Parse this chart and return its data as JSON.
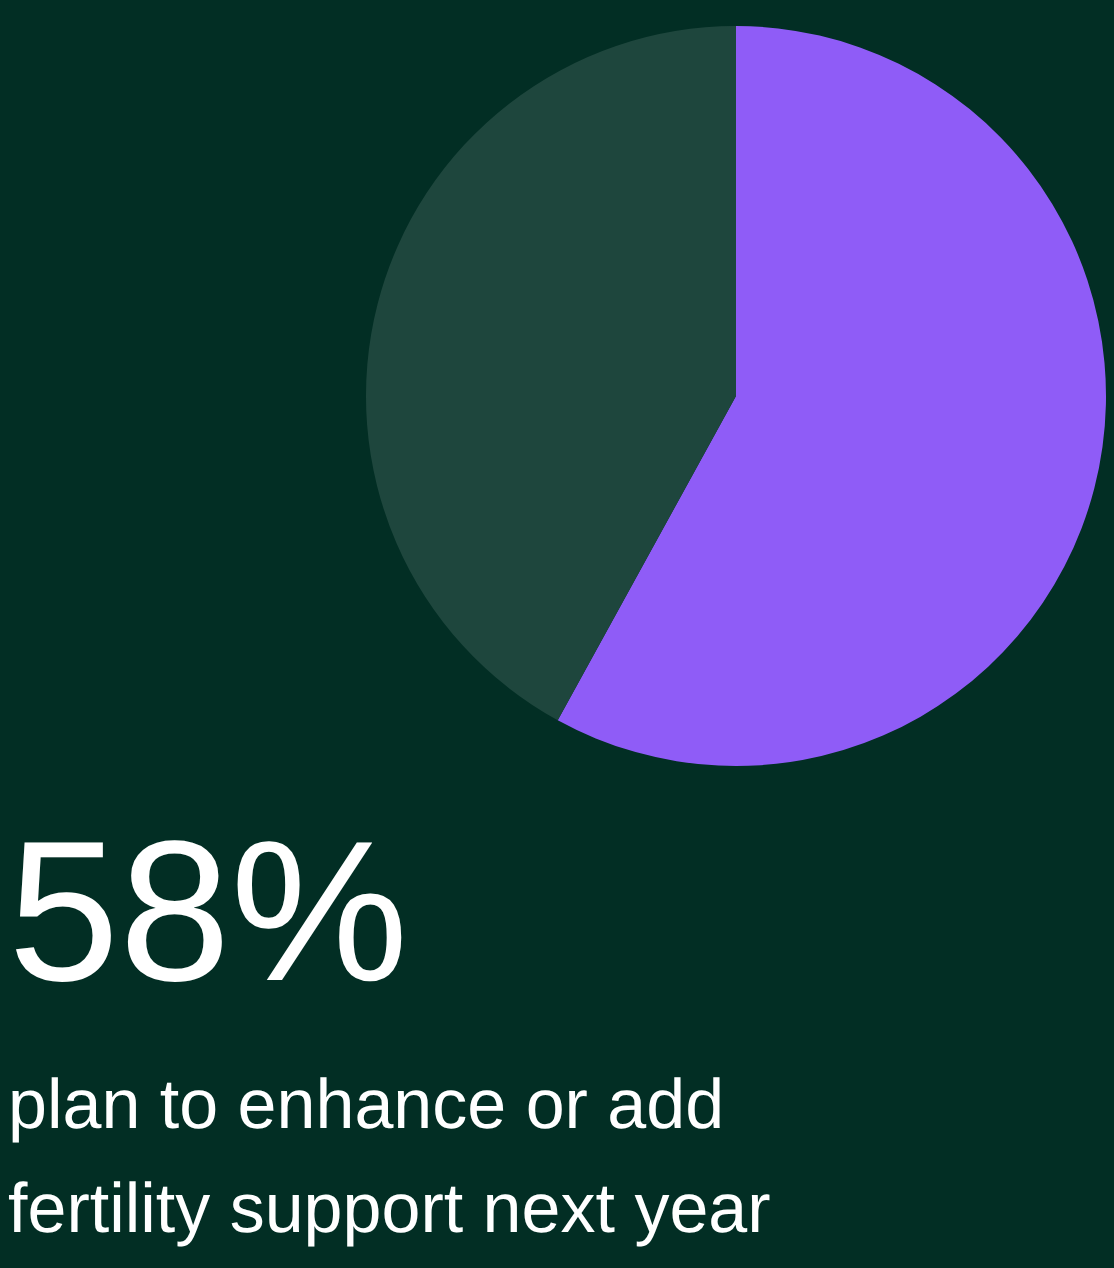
{
  "chart_data": {
    "type": "pie",
    "categories": [
      null,
      null
    ],
    "values": [
      58,
      42
    ],
    "colors": [
      "#8f5cf7",
      "#1e463d"
    ],
    "value_labels": [
      "58%",
      null
    ],
    "annotations": [
      "plan to enhance or add fertility support next year"
    ]
  }
}
